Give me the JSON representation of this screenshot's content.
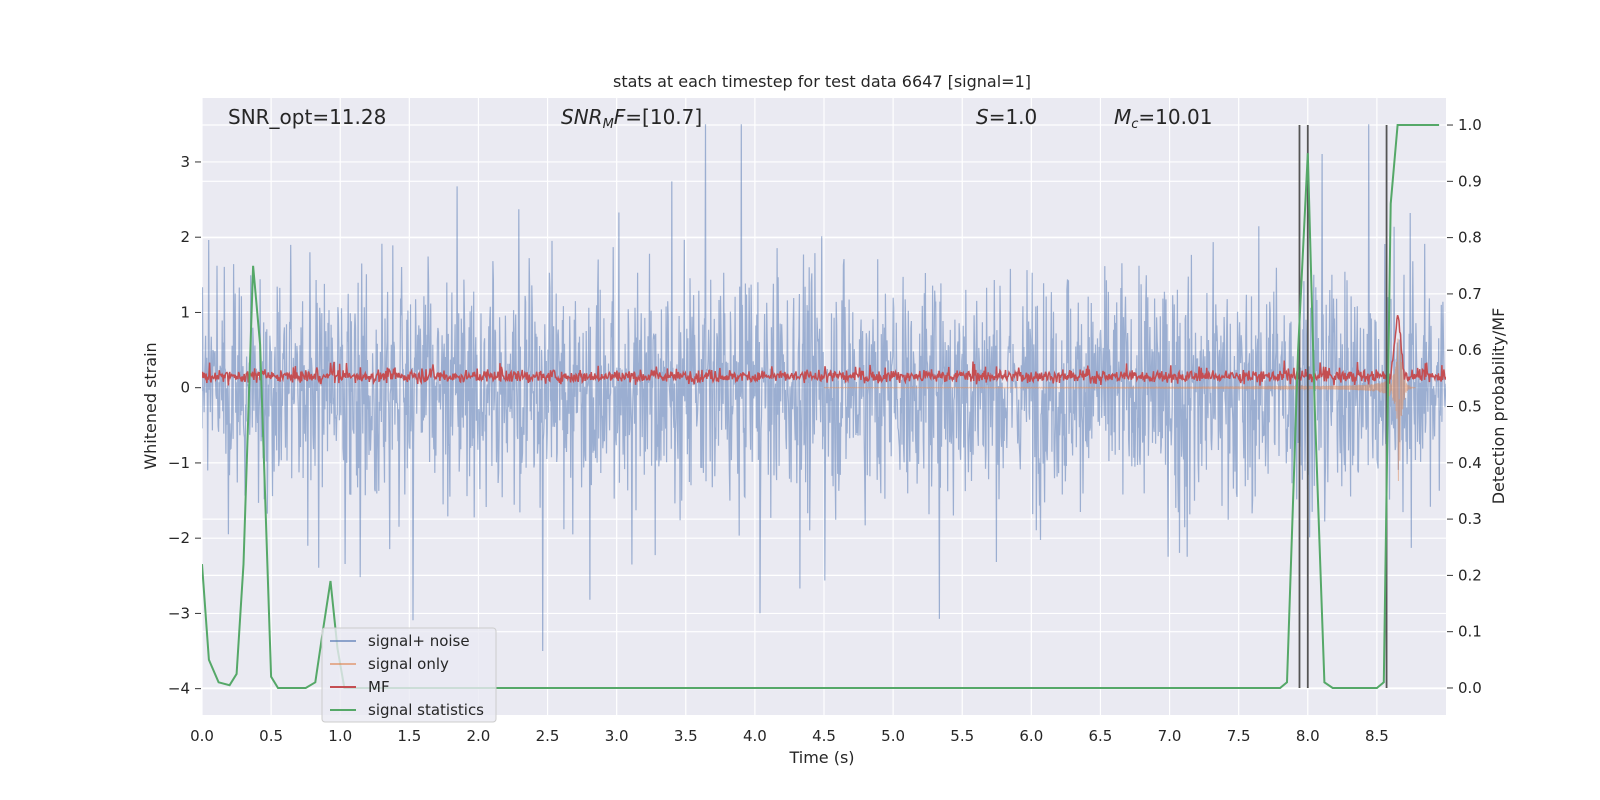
{
  "chart_data": {
    "type": "line",
    "title": "stats at each timestep for test data 6647 [signal=1]",
    "xlabel": "Time (s)",
    "ylabel": "Whitened strain",
    "y2label": "Detection probability/MF",
    "xlim": [
      0,
      9.0
    ],
    "ylim": [
      -4.35,
      3.85
    ],
    "y2lim": [
      -0.048,
      1.048
    ],
    "xticks": [
      0.0,
      0.5,
      1.0,
      1.5,
      2.0,
      2.5,
      3.0,
      3.5,
      4.0,
      4.5,
      5.0,
      5.5,
      6.0,
      6.5,
      7.0,
      7.5,
      8.0,
      8.5
    ],
    "xtick_labels": [
      "0.0",
      "0.5",
      "1.0",
      "1.5",
      "2.0",
      "2.5",
      "3.0",
      "3.5",
      "4.0",
      "4.5",
      "5.0",
      "5.5",
      "6.0",
      "6.5",
      "7.0",
      "7.5",
      "8.0",
      "8.5"
    ],
    "yticks": [
      -4,
      -3,
      -2,
      -1,
      0,
      1,
      2,
      3
    ],
    "ytick_labels": [
      "−4",
      "−3",
      "−2",
      "−1",
      "0",
      "1",
      "2",
      "3"
    ],
    "y2ticks": [
      0.0,
      0.1,
      0.2,
      0.3,
      0.4,
      0.5,
      0.6,
      0.7,
      0.8,
      0.9,
      1.0
    ],
    "y2tick_labels": [
      "0.0",
      "0.1",
      "0.2",
      "0.3",
      "0.4",
      "0.5",
      "0.6",
      "0.7",
      "0.8",
      "0.9",
      "1.0"
    ],
    "grid": true,
    "legend_position": "lower-left",
    "annotations": [
      {
        "id": "snr-opt",
        "text": "SNR_opt=11.28"
      },
      {
        "id": "snr-mf",
        "text": "SNR_MF=[10.7]"
      },
      {
        "id": "s-val",
        "text": "S=1.0"
      },
      {
        "id": "mc-val",
        "text": "M_c=10.01"
      }
    ],
    "series": [
      {
        "name": "signal+ noise",
        "color": "#4c72b0",
        "style": "dense noise, amplitude about ±2 with peaks near ±3.3",
        "axis": "left"
      },
      {
        "name": "signal only",
        "color": "#dd8452",
        "style": "chirp growing from ~4.5 s, peak amplitude about ±1.5 at 8.65 s",
        "axis": "left"
      },
      {
        "name": "MF",
        "color": "#c44e52",
        "style": "noisy band around 0.15 on left axis, spike to 1.0 at 8.65 s",
        "axis": "left"
      },
      {
        "name": "signal statistics",
        "color": "#55a868",
        "axis": "right",
        "points": [
          [
            0.0,
            0.22
          ],
          [
            0.05,
            0.05
          ],
          [
            0.12,
            0.01
          ],
          [
            0.2,
            0.005
          ],
          [
            0.25,
            0.025
          ],
          [
            0.3,
            0.22
          ],
          [
            0.37,
            0.75
          ],
          [
            0.42,
            0.61
          ],
          [
            0.5,
            0.02
          ],
          [
            0.55,
            0.0
          ],
          [
            0.75,
            0.0
          ],
          [
            0.82,
            0.01
          ],
          [
            0.88,
            0.11
          ],
          [
            0.93,
            0.19
          ],
          [
            0.98,
            0.07
          ],
          [
            1.03,
            0.0
          ],
          [
            7.8,
            0.0
          ],
          [
            7.85,
            0.01
          ],
          [
            7.93,
            0.6
          ],
          [
            8.0,
            0.95
          ],
          [
            8.05,
            0.5
          ],
          [
            8.12,
            0.01
          ],
          [
            8.18,
            0.0
          ],
          [
            8.5,
            0.0
          ],
          [
            8.55,
            0.01
          ],
          [
            8.6,
            0.86
          ],
          [
            8.65,
            1.0
          ],
          [
            8.95,
            1.0
          ]
        ]
      }
    ],
    "vlines": [
      7.94,
      8.0,
      8.57
    ],
    "vline_color": "#555555"
  }
}
